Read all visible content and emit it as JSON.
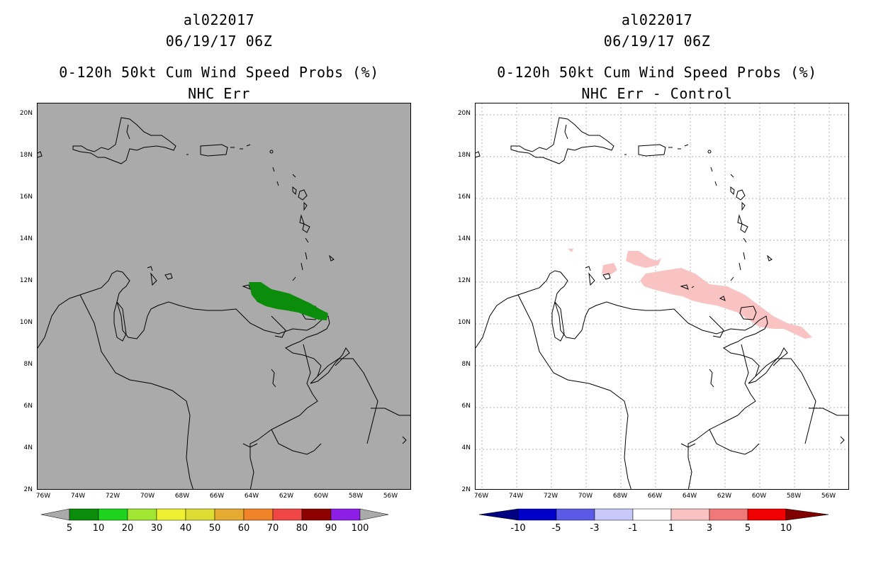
{
  "left": {
    "title1": "al022017",
    "title2": "06/19/17 06Z",
    "title3": "0-120h 50kt Cum Wind Speed Probs (%)",
    "title4": "NHC Err",
    "background": "#aaaaaa",
    "area_color": "#0b8c0b",
    "colorbar": {
      "under_color": "#aaaaaa",
      "over_color": "#aaaaaa",
      "colors": [
        "#0b8c0b",
        "#1ed31e",
        "#a0e632",
        "#f0f032",
        "#dcdc32",
        "#e6aa32",
        "#f08228",
        "#f04646",
        "#8c0000",
        "#8c1ee6"
      ],
      "labels": [
        "5",
        "10",
        "20",
        "30",
        "40",
        "50",
        "60",
        "70",
        "80",
        "90",
        "100"
      ]
    }
  },
  "right": {
    "title1": "al022017",
    "title2": "06/19/17 06Z",
    "title3": "0-120h 50kt Cum Wind Speed Probs (%)",
    "title4": "NHC Err - Control",
    "background": "#ffffff",
    "area_color": "#fac3c3",
    "colorbar": {
      "under_color": "#000080",
      "over_color": "#800000",
      "colors": [
        "#0000c8",
        "#5a5ae6",
        "#c8c8fa",
        "#ffffff",
        "#fac3c3",
        "#f07878",
        "#f00000"
      ],
      "labels": [
        "-10",
        "-5",
        "-3",
        "-1",
        "1",
        "3",
        "5",
        "10"
      ]
    }
  },
  "axes": {
    "lat_labels": [
      "20N",
      "18N",
      "16N",
      "14N",
      "12N",
      "10N",
      "8N",
      "6N",
      "4N",
      "2N"
    ],
    "lon_labels": [
      "76W",
      "74W",
      "72W",
      "70W",
      "68W",
      "66W",
      "64W",
      "62W",
      "60W",
      "58W",
      "56W"
    ]
  }
}
